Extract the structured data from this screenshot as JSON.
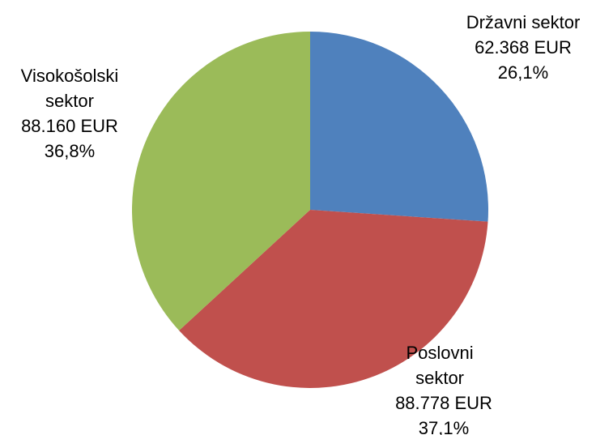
{
  "chart_data": {
    "type": "pie",
    "categories": [
      "Državni sektor",
      "Poslovni sektor",
      "Visokošolski sektor"
    ],
    "values": [
      62368,
      88778,
      88160
    ],
    "value_labels": [
      "62.368 EUR",
      "88.778 EUR",
      "88.160 EUR"
    ],
    "percent_labels": [
      "26,1%",
      "37,1%",
      "36,8%"
    ],
    "colors": [
      "#4f81bd",
      "#c0504d",
      "#9bbb59"
    ]
  }
}
